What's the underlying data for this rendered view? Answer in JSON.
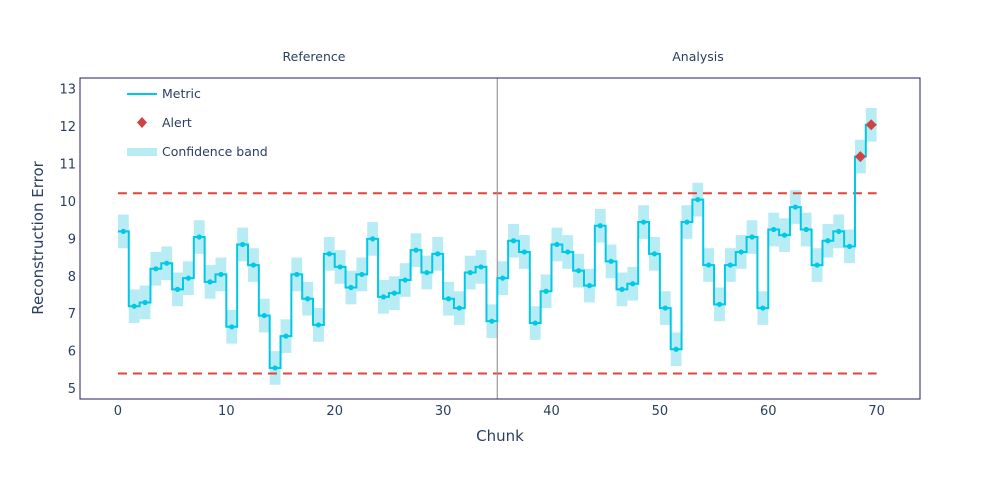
{
  "chart_data": {
    "type": "line",
    "title": "",
    "xlabel": "Chunk",
    "ylabel": "Reconstruction Error",
    "xlim": [
      -3.5,
      74
    ],
    "ylim": [
      4.72,
      13.3
    ],
    "x_ticks": [
      0,
      10,
      20,
      30,
      40,
      50,
      60,
      70
    ],
    "y_ticks": [
      5,
      6,
      7,
      8,
      9,
      10,
      11,
      12,
      13
    ],
    "grid": false,
    "legend_position": "top-left",
    "sections": [
      {
        "label": "Reference",
        "x_start": 0,
        "x_end": 35
      },
      {
        "label": "Analysis",
        "x_start": 35,
        "x_end": 70
      }
    ],
    "divider_x": 35,
    "upper_threshold": 10.22,
    "lower_threshold": 5.4,
    "band_half_width": 0.45,
    "series": [
      {
        "name": "Metric",
        "color": "#00c8e5",
        "values": [
          9.2,
          7.2,
          7.3,
          8.2,
          8.35,
          7.65,
          7.95,
          9.05,
          7.85,
          8.05,
          6.65,
          8.85,
          8.3,
          6.95,
          5.55,
          6.4,
          8.05,
          7.4,
          6.7,
          8.6,
          8.25,
          7.7,
          8.05,
          9.0,
          7.45,
          7.55,
          7.9,
          8.7,
          8.1,
          8.6,
          7.4,
          7.15,
          8.1,
          8.25,
          6.8,
          7.95,
          8.95,
          8.65,
          6.75,
          7.6,
          8.85,
          8.65,
          8.15,
          7.75,
          9.35,
          8.4,
          7.65,
          7.8,
          9.45,
          8.6,
          7.15,
          6.05,
          9.45,
          10.05,
          8.3,
          7.25,
          8.3,
          8.65,
          9.05,
          7.15,
          9.25,
          9.1,
          9.85,
          9.25,
          8.3,
          8.95,
          9.2,
          8.8,
          11.2,
          12.05
        ]
      },
      {
        "name": "Alert",
        "color": "#cc4444",
        "points": [
          {
            "x": 68.5,
            "y": 11.2
          },
          {
            "x": 69.5,
            "y": 12.05
          }
        ]
      },
      {
        "name": "Confidence band",
        "color": "#b8ecf5"
      }
    ]
  }
}
